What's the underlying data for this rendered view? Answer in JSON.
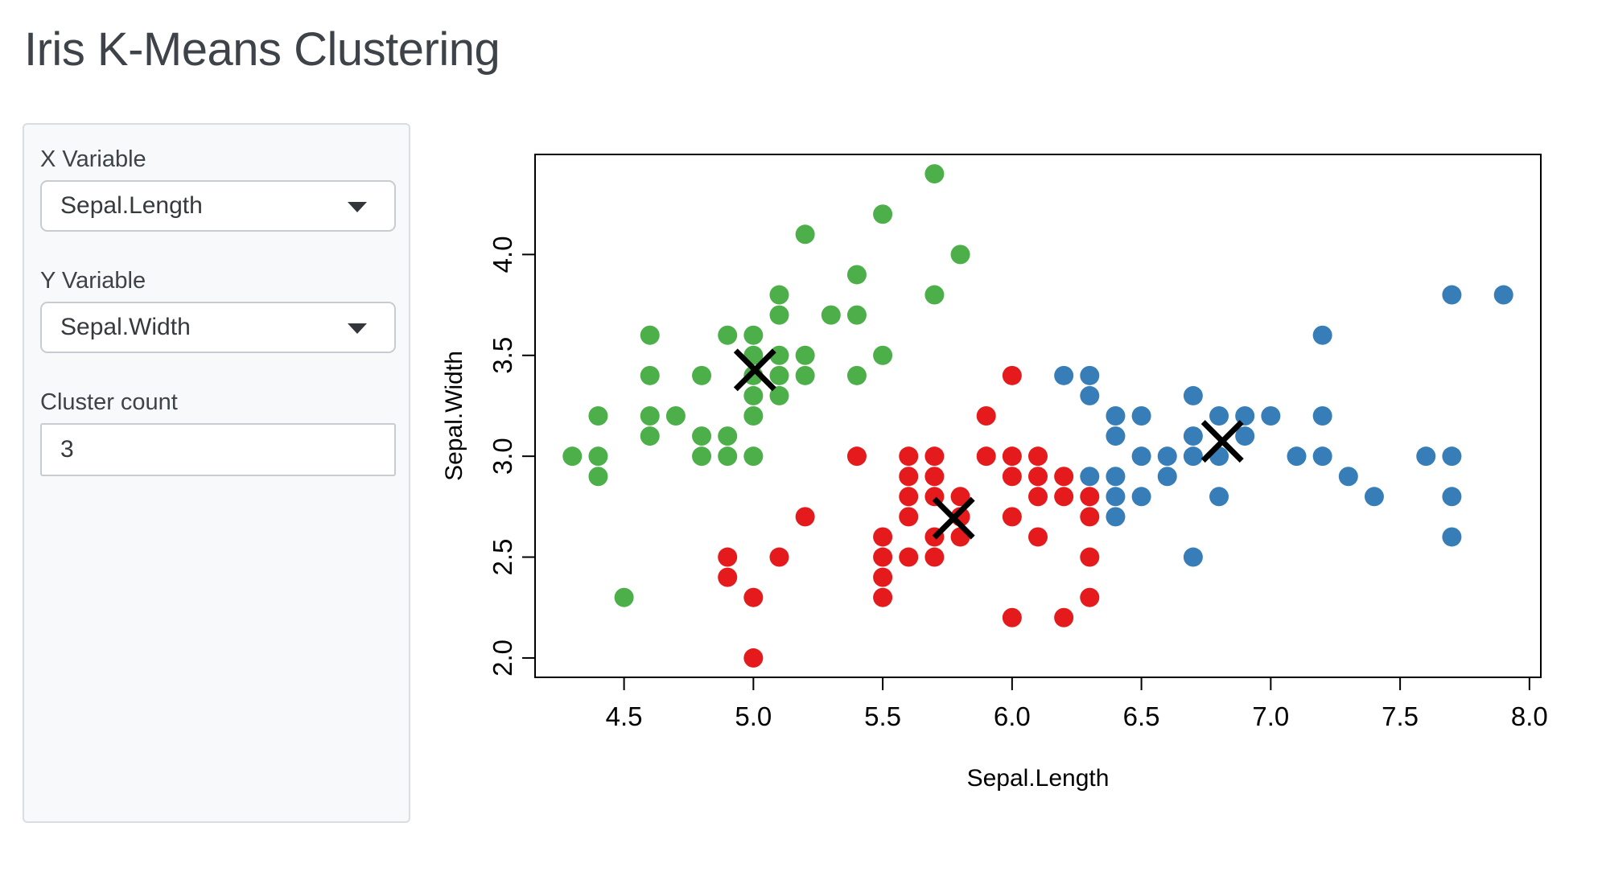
{
  "title": "Iris K-Means Clustering",
  "sidebar": {
    "x_variable": {
      "label": "X Variable",
      "value": "Sepal.Length"
    },
    "y_variable": {
      "label": "Y Variable",
      "value": "Sepal.Width"
    },
    "cluster_count": {
      "label": "Cluster count",
      "value": "3"
    }
  },
  "chart_data": {
    "type": "scatter",
    "title": "",
    "xlabel": "Sepal.Length",
    "ylabel": "Sepal.Width",
    "x_ticks": [
      4.5,
      5.0,
      5.5,
      6.0,
      6.5,
      7.0,
      7.5,
      8.0
    ],
    "y_ticks": [
      2.0,
      2.5,
      3.0,
      3.5,
      4.0
    ],
    "xlim": [
      4.156,
      8.044
    ],
    "ylim": [
      1.904,
      4.496
    ],
    "grid": false,
    "legend": "none",
    "point_radius": 12,
    "centroid_marker": "X",
    "centroid_color": "#000000",
    "frame_color": "#000000",
    "clusters": [
      {
        "name": "cluster-green",
        "color": "#4DAF4A",
        "centroid": [
          5.006,
          3.428
        ],
        "points": [
          [
            4.3,
            3.0
          ],
          [
            4.4,
            2.9
          ],
          [
            4.4,
            3.0
          ],
          [
            4.4,
            3.2
          ],
          [
            4.5,
            2.3
          ],
          [
            4.6,
            3.1
          ],
          [
            4.6,
            3.2
          ],
          [
            4.6,
            3.4
          ],
          [
            4.6,
            3.6
          ],
          [
            4.7,
            3.2
          ],
          [
            4.8,
            3.0
          ],
          [
            4.8,
            3.1
          ],
          [
            4.8,
            3.4
          ],
          [
            4.9,
            3.0
          ],
          [
            4.9,
            3.1
          ],
          [
            4.9,
            3.6
          ],
          [
            5.0,
            3.0
          ],
          [
            5.0,
            3.2
          ],
          [
            5.0,
            3.3
          ],
          [
            5.0,
            3.4
          ],
          [
            5.0,
            3.5
          ],
          [
            5.0,
            3.6
          ],
          [
            5.1,
            3.3
          ],
          [
            5.1,
            3.4
          ],
          [
            5.1,
            3.5
          ],
          [
            5.1,
            3.7
          ],
          [
            5.1,
            3.8
          ],
          [
            5.2,
            3.4
          ],
          [
            5.2,
            3.5
          ],
          [
            5.2,
            4.1
          ],
          [
            5.3,
            3.7
          ],
          [
            5.4,
            3.4
          ],
          [
            5.4,
            3.7
          ],
          [
            5.4,
            3.9
          ],
          [
            5.5,
            3.5
          ],
          [
            5.5,
            4.2
          ],
          [
            5.7,
            3.8
          ],
          [
            5.7,
            4.4
          ],
          [
            5.8,
            4.0
          ]
        ]
      },
      {
        "name": "cluster-red",
        "color": "#E41A1C",
        "centroid": [
          5.774,
          2.693
        ],
        "points": [
          [
            4.9,
            2.4
          ],
          [
            4.9,
            2.5
          ],
          [
            5.0,
            2.0
          ],
          [
            5.0,
            2.3
          ],
          [
            5.1,
            2.5
          ],
          [
            5.2,
            2.7
          ],
          [
            5.4,
            3.0
          ],
          [
            5.5,
            2.3
          ],
          [
            5.5,
            2.4
          ],
          [
            5.5,
            2.5
          ],
          [
            5.5,
            2.6
          ],
          [
            5.6,
            2.5
          ],
          [
            5.6,
            2.7
          ],
          [
            5.6,
            2.8
          ],
          [
            5.6,
            2.9
          ],
          [
            5.6,
            3.0
          ],
          [
            5.7,
            2.5
          ],
          [
            5.7,
            2.6
          ],
          [
            5.7,
            2.8
          ],
          [
            5.7,
            2.9
          ],
          [
            5.7,
            3.0
          ],
          [
            5.8,
            2.6
          ],
          [
            5.8,
            2.7
          ],
          [
            5.8,
            2.8
          ],
          [
            5.9,
            3.0
          ],
          [
            5.9,
            3.2
          ],
          [
            6.0,
            2.2
          ],
          [
            6.0,
            2.7
          ],
          [
            6.0,
            2.9
          ],
          [
            6.0,
            3.0
          ],
          [
            6.0,
            3.4
          ],
          [
            6.1,
            2.6
          ],
          [
            6.1,
            2.8
          ],
          [
            6.1,
            2.9
          ],
          [
            6.1,
            3.0
          ],
          [
            6.2,
            2.2
          ],
          [
            6.2,
            2.8
          ],
          [
            6.2,
            2.9
          ],
          [
            6.3,
            2.3
          ],
          [
            6.3,
            2.5
          ],
          [
            6.3,
            2.7
          ],
          [
            6.3,
            2.8
          ]
        ]
      },
      {
        "name": "cluster-blue",
        "color": "#377EB8",
        "centroid": [
          6.813,
          3.074
        ],
        "points": [
          [
            6.2,
            3.4
          ],
          [
            6.3,
            2.9
          ],
          [
            6.3,
            3.3
          ],
          [
            6.3,
            3.4
          ],
          [
            6.4,
            2.7
          ],
          [
            6.4,
            2.8
          ],
          [
            6.4,
            2.9
          ],
          [
            6.4,
            3.1
          ],
          [
            6.4,
            3.2
          ],
          [
            6.5,
            2.8
          ],
          [
            6.5,
            3.0
          ],
          [
            6.5,
            3.2
          ],
          [
            6.6,
            2.9
          ],
          [
            6.6,
            3.0
          ],
          [
            6.7,
            2.5
          ],
          [
            6.7,
            3.0
          ],
          [
            6.7,
            3.1
          ],
          [
            6.7,
            3.3
          ],
          [
            6.8,
            2.8
          ],
          [
            6.8,
            3.0
          ],
          [
            6.8,
            3.2
          ],
          [
            6.9,
            3.1
          ],
          [
            6.9,
            3.2
          ],
          [
            7.0,
            3.2
          ],
          [
            7.1,
            3.0
          ],
          [
            7.2,
            3.0
          ],
          [
            7.2,
            3.2
          ],
          [
            7.2,
            3.6
          ],
          [
            7.3,
            2.9
          ],
          [
            7.4,
            2.8
          ],
          [
            7.6,
            3.0
          ],
          [
            7.7,
            2.6
          ],
          [
            7.7,
            2.8
          ],
          [
            7.7,
            3.0
          ],
          [
            7.7,
            3.8
          ],
          [
            7.9,
            3.8
          ]
        ]
      }
    ]
  }
}
